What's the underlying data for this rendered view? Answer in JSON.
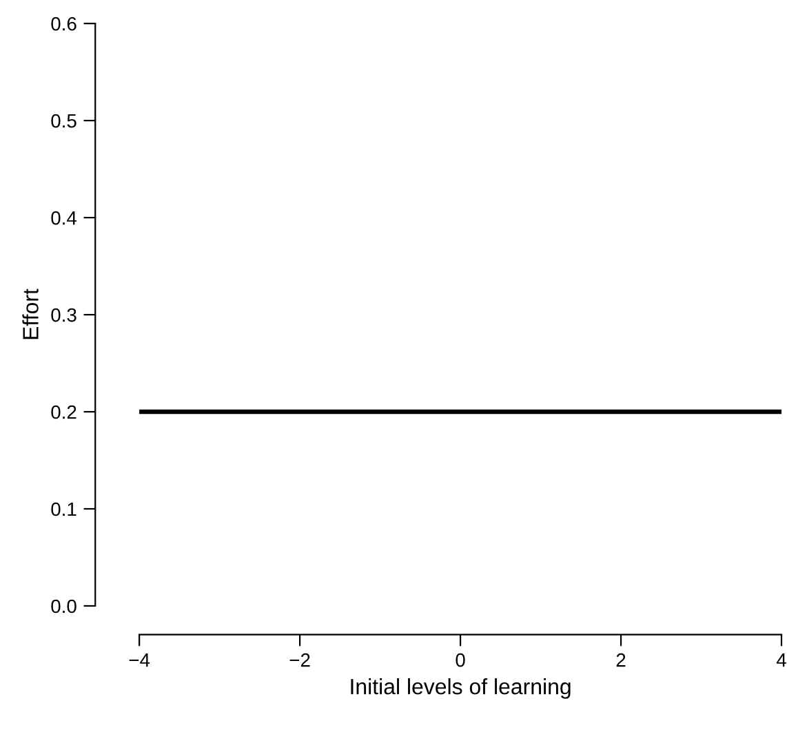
{
  "chart_data": {
    "type": "line",
    "xlabel": "Initial levels of learning",
    "ylabel": "Effort",
    "x": [
      -4,
      4
    ],
    "series": [
      {
        "color": "#000000",
        "values": [
          0.2,
          0.2
        ]
      }
    ],
    "xlim": [
      -4,
      4
    ],
    "ylim": [
      0,
      0.6
    ],
    "xticks": [
      {
        "value": -4,
        "label": "−4"
      },
      {
        "value": -2,
        "label": "−2"
      },
      0,
      2,
      4
    ],
    "yticks": [
      {
        "value": 0,
        "label": "0.0"
      },
      0.1,
      0.2,
      0.3,
      0.4,
      0.5,
      0.6
    ],
    "grid": false,
    "legend": false,
    "marker": "none",
    "line_style": "solid"
  }
}
